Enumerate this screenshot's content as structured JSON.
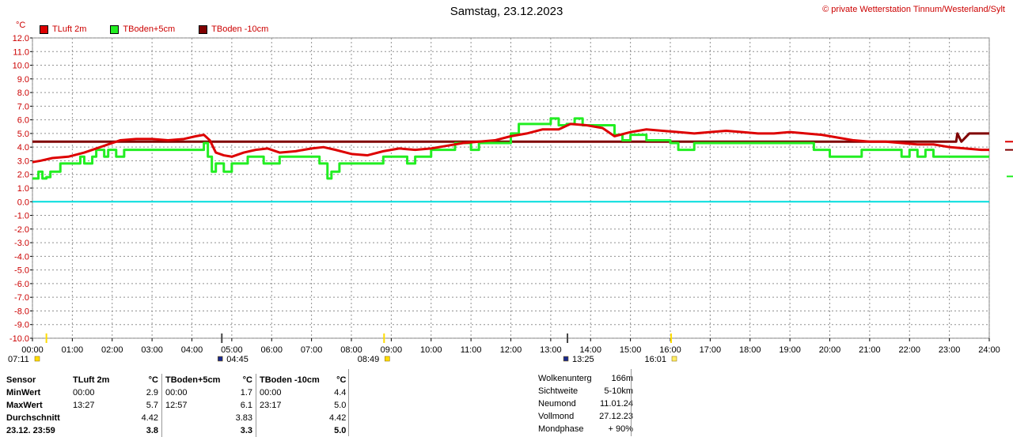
{
  "title": "Samstag, 23.12.2023",
  "copyright": "© private Wetterstation Tinnum/Westerland/Sylt",
  "unit": "°C",
  "legend": [
    {
      "label": "TLuft 2m",
      "color": "#dd0000"
    },
    {
      "label": "TBoden+5cm",
      "color": "#22ee22"
    },
    {
      "label": "TBoden -10cm",
      "color": "#800000"
    }
  ],
  "astro_events": [
    {
      "time": "07:11",
      "icon": "sunrise-icon",
      "hour": 0.35,
      "label_x_hour": 0.35
    },
    {
      "time": "04:45",
      "icon": "moonrise-icon",
      "hour": 4.75
    },
    {
      "time": "08:49",
      "icon": "sun-icon",
      "hour": 8.82
    },
    {
      "time": "13:25",
      "icon": "moonset-icon",
      "hour": 13.42
    },
    {
      "time": "16:01",
      "icon": "sunset-icon",
      "hour": 16.02
    }
  ],
  "chart_data": {
    "type": "line",
    "x_unit": "hour of day",
    "xlim": [
      0,
      24
    ],
    "ylim": [
      -10,
      12
    ],
    "x_ticks": [
      "00:00",
      "01:00",
      "02:00",
      "03:00",
      "04:00",
      "05:00",
      "06:00",
      "07:00",
      "08:00",
      "09:00",
      "10:00",
      "11:00",
      "12:00",
      "13:00",
      "14:00",
      "15:00",
      "16:00",
      "17:00",
      "18:00",
      "19:00",
      "20:00",
      "21:00",
      "22:00",
      "23:00",
      "24:00"
    ],
    "y_ticks": [
      "12.0",
      "11.0",
      "10.0",
      "9.0",
      "8.0",
      "7.0",
      "6.0",
      "5.0",
      "4.0",
      "3.0",
      "2.0",
      "1.0",
      "0.0",
      "-1.0",
      "-2.0",
      "-3.0",
      "-4.0",
      "-5.0",
      "-6.0",
      "-7.0",
      "-8.0",
      "-9.0",
      "-10.0"
    ],
    "grid": true,
    "series": [
      {
        "name": "TLuft 2m",
        "color": "#dd0000",
        "x": [
          0,
          0.2,
          0.5,
          0.9,
          1.3,
          1.6,
          1.9,
          2.2,
          2.6,
          3.0,
          3.4,
          3.8,
          4.1,
          4.3,
          4.45,
          4.6,
          4.8,
          5.0,
          5.3,
          5.6,
          5.9,
          6.2,
          6.6,
          7.0,
          7.3,
          7.6,
          8.0,
          8.4,
          8.8,
          9.2,
          9.6,
          10.0,
          10.4,
          10.8,
          11.2,
          11.6,
          12.0,
          12.4,
          12.8,
          13.2,
          13.5,
          13.9,
          14.3,
          14.6,
          15.0,
          15.4,
          15.8,
          16.2,
          16.6,
          17.0,
          17.4,
          17.8,
          18.2,
          18.6,
          19.0,
          19.4,
          19.8,
          20.2,
          20.6,
          21.0,
          21.4,
          21.8,
          22.2,
          22.6,
          23.0,
          23.4,
          23.8,
          24.0
        ],
        "y": [
          2.9,
          3.0,
          3.2,
          3.3,
          3.6,
          3.9,
          4.2,
          4.5,
          4.6,
          4.6,
          4.5,
          4.6,
          4.8,
          4.9,
          4.5,
          3.6,
          3.4,
          3.3,
          3.6,
          3.8,
          3.9,
          3.6,
          3.7,
          3.9,
          4.0,
          3.8,
          3.5,
          3.4,
          3.7,
          3.9,
          3.8,
          3.9,
          4.1,
          4.3,
          4.4,
          4.5,
          4.8,
          5.0,
          5.3,
          5.3,
          5.7,
          5.6,
          5.4,
          4.8,
          5.1,
          5.3,
          5.2,
          5.1,
          5.0,
          5.1,
          5.2,
          5.1,
          5.0,
          5.0,
          5.1,
          5.0,
          4.9,
          4.7,
          4.5,
          4.4,
          4.4,
          4.3,
          4.2,
          4.2,
          4.0,
          3.9,
          3.8,
          3.8
        ]
      },
      {
        "name": "TBoden+5cm",
        "color": "#22ee22",
        "x": [
          0,
          0.15,
          0.25,
          0.35,
          0.45,
          0.55,
          0.7,
          0.9,
          1.05,
          1.2,
          1.3,
          1.5,
          1.6,
          1.8,
          1.9,
          2.0,
          2.1,
          2.3,
          2.4,
          2.6,
          2.8,
          3.0,
          3.2,
          3.4,
          3.6,
          3.8,
          4.0,
          4.2,
          4.3,
          4.4,
          4.5,
          4.6,
          4.8,
          4.9,
          5.0,
          5.2,
          5.4,
          5.6,
          5.8,
          6.2,
          6.6,
          7.0,
          7.2,
          7.4,
          7.5,
          7.7,
          8.0,
          8.2,
          8.5,
          8.8,
          9.0,
          9.2,
          9.4,
          9.6,
          9.8,
          10.0,
          10.2,
          10.4,
          10.6,
          10.8,
          11.0,
          11.2,
          11.4,
          11.6,
          11.8,
          12.0,
          12.2,
          12.4,
          12.6,
          12.8,
          13.0,
          13.2,
          13.4,
          13.6,
          13.8,
          14.0,
          14.3,
          14.6,
          14.8,
          15.0,
          15.2,
          15.4,
          15.6,
          15.8,
          16.0,
          16.2,
          16.4,
          16.6,
          17.0,
          17.4,
          17.8,
          18.2,
          18.6,
          19.0,
          19.4,
          19.6,
          19.8,
          20.0,
          20.4,
          20.8,
          21.2,
          21.6,
          21.8,
          22.0,
          22.2,
          22.4,
          22.6,
          23.0,
          23.4,
          23.8,
          24.0
        ],
        "y": [
          1.7,
          2.2,
          1.7,
          1.8,
          2.2,
          2.2,
          2.8,
          2.8,
          2.8,
          3.3,
          2.8,
          3.3,
          3.8,
          3.3,
          3.8,
          3.8,
          3.3,
          3.8,
          3.8,
          3.8,
          3.8,
          3.8,
          3.8,
          3.8,
          3.8,
          3.8,
          3.8,
          3.8,
          4.3,
          3.3,
          2.2,
          2.8,
          2.2,
          2.2,
          2.8,
          2.8,
          3.3,
          3.3,
          2.8,
          3.3,
          3.3,
          3.3,
          2.8,
          1.7,
          2.2,
          2.8,
          2.8,
          2.8,
          2.8,
          3.3,
          3.3,
          3.3,
          2.8,
          3.3,
          3.3,
          3.8,
          3.8,
          3.8,
          4.3,
          4.3,
          3.8,
          4.3,
          4.3,
          4.3,
          4.3,
          5.0,
          5.7,
          5.7,
          5.7,
          5.7,
          6.1,
          5.6,
          5.7,
          6.1,
          5.6,
          5.6,
          5.6,
          4.9,
          4.5,
          4.9,
          4.9,
          4.5,
          4.5,
          4.5,
          4.3,
          3.8,
          3.8,
          4.3,
          4.3,
          4.3,
          4.3,
          4.3,
          4.3,
          4.3,
          4.3,
          3.8,
          3.8,
          3.3,
          3.3,
          3.8,
          3.8,
          3.8,
          3.3,
          3.8,
          3.3,
          3.8,
          3.3,
          3.3,
          3.3,
          3.3,
          3.3
        ]
      },
      {
        "name": "TBoden -10cm",
        "color": "#800000",
        "x": [
          0,
          1,
          2,
          3,
          4,
          5,
          6,
          7,
          8,
          9,
          10,
          11,
          12,
          13,
          14,
          15,
          16,
          17,
          18,
          19,
          20,
          21,
          22,
          23,
          23.17,
          23.2,
          23.3,
          23.5,
          24.0
        ],
        "y": [
          4.4,
          4.4,
          4.4,
          4.4,
          4.4,
          4.4,
          4.4,
          4.4,
          4.4,
          4.4,
          4.4,
          4.4,
          4.4,
          4.4,
          4.4,
          4.4,
          4.4,
          4.4,
          4.4,
          4.4,
          4.4,
          4.4,
          4.4,
          4.4,
          4.4,
          5.0,
          4.4,
          5.0,
          5.0
        ]
      }
    ],
    "reference_line": {
      "y": 0.0,
      "color": "#00dddd"
    }
  },
  "stats": {
    "header": {
      "sensor": "Sensor",
      "unit": "°C",
      "cols": [
        "TLuft 2m",
        "TBoden+5cm",
        "TBoden -10cm"
      ]
    },
    "rows": [
      {
        "label": "MinWert",
        "cells": [
          [
            "00:00",
            "2.9"
          ],
          [
            "00:00",
            "1.7"
          ],
          [
            "00:00",
            "4.4"
          ]
        ]
      },
      {
        "label": "MaxWert",
        "cells": [
          [
            "13:27",
            "5.7"
          ],
          [
            "12:57",
            "6.1"
          ],
          [
            "23:17",
            "5.0"
          ]
        ]
      },
      {
        "label": "Durchschnitt",
        "cells": [
          [
            "",
            "4.42"
          ],
          [
            "",
            "3.83"
          ],
          [
            "",
            "4.42"
          ]
        ]
      },
      {
        "label": "23.12. 23:59",
        "cells": [
          [
            "",
            "3.8"
          ],
          [
            "",
            "3.3"
          ],
          [
            "",
            "5.0"
          ]
        ]
      }
    ]
  },
  "astro": [
    {
      "label": "Wolkenunterg",
      "value": "166m"
    },
    {
      "label": "Sichtweite",
      "value": "5-10km"
    },
    {
      "label": "Neumond",
      "value": "11.01.24"
    },
    {
      "label": "Vollmond",
      "value": "27.12.23"
    },
    {
      "label": "Mondphase",
      "value": "+ 90%"
    }
  ]
}
